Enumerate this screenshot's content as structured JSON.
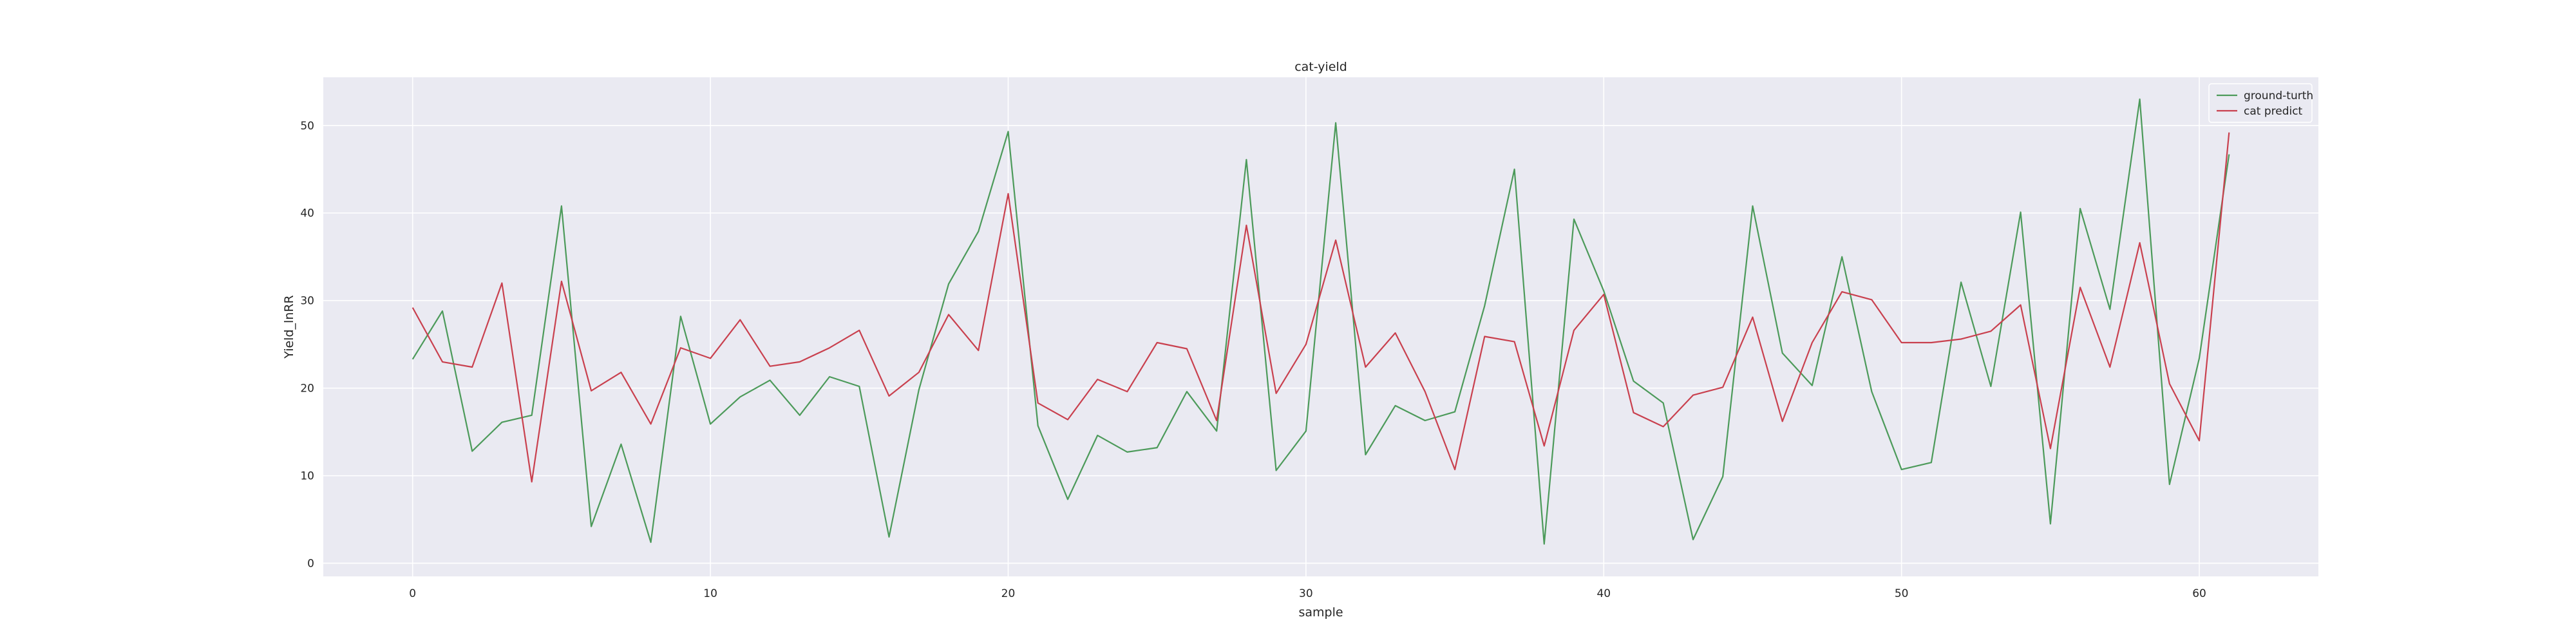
{
  "chart_data": {
    "type": "line",
    "title": "cat-yield",
    "xlabel": "sample",
    "ylabel": "Yield_lnRR",
    "xlim": [
      -3,
      64
    ],
    "ylim": [
      -1.5,
      55.5
    ],
    "xticks": [
      0,
      10,
      20,
      30,
      40,
      50,
      60
    ],
    "yticks": [
      0,
      10,
      20,
      30,
      40,
      50
    ],
    "grid": true,
    "legend_position": "top-right",
    "x": [
      0,
      1,
      2,
      3,
      4,
      5,
      6,
      7,
      8,
      9,
      10,
      11,
      12,
      13,
      14,
      15,
      16,
      17,
      18,
      19,
      20,
      21,
      22,
      23,
      24,
      25,
      26,
      27,
      28,
      29,
      30,
      31,
      32,
      33,
      34,
      35,
      36,
      37,
      38,
      39,
      40,
      41,
      42,
      43,
      44,
      45,
      46,
      47,
      48,
      49,
      50,
      51,
      52,
      53,
      54,
      55,
      56,
      57,
      58,
      59,
      60,
      61
    ],
    "series": [
      {
        "name": "ground-turth",
        "color": "#4c9a5a",
        "values": [
          23.3,
          28.8,
          12.8,
          16.1,
          16.9,
          40.8,
          4.2,
          13.6,
          2.4,
          28.2,
          15.9,
          19.0,
          20.9,
          16.9,
          21.3,
          20.2,
          3.0,
          19.8,
          31.9,
          37.9,
          49.3,
          15.7,
          7.3,
          14.6,
          12.7,
          13.2,
          19.6,
          15.1,
          46.1,
          10.6,
          15.1,
          50.3,
          12.4,
          18.0,
          16.3,
          17.3,
          29.4,
          45.0,
          2.2,
          39.3,
          31.1,
          20.8,
          18.3,
          2.7,
          9.9,
          40.8,
          24.0,
          20.3,
          35.0,
          19.6,
          10.7,
          11.5,
          32.1,
          20.2,
          40.1,
          4.5,
          40.5,
          29.0,
          53.0,
          9.0,
          23.4,
          46.7
        ]
      },
      {
        "name": "cat predict",
        "color": "#c9404e",
        "values": [
          29.2,
          23.0,
          22.4,
          32.0,
          9.3,
          32.2,
          19.7,
          21.8,
          15.9,
          24.6,
          23.4,
          27.8,
          22.5,
          23.0,
          24.6,
          26.6,
          19.1,
          21.8,
          28.4,
          24.3,
          42.2,
          18.3,
          16.4,
          21.0,
          19.6,
          25.2,
          24.5,
          16.3,
          38.6,
          19.4,
          25.0,
          36.9,
          22.4,
          26.3,
          19.6,
          10.7,
          25.9,
          25.3,
          13.4,
          26.6,
          30.7,
          17.2,
          15.6,
          19.2,
          20.1,
          28.1,
          16.2,
          25.2,
          31.0,
          30.1,
          25.2,
          25.2,
          25.6,
          26.5,
          29.5,
          13.1,
          31.5,
          22.4,
          36.6,
          20.5,
          14.0,
          49.2
        ]
      }
    ]
  }
}
